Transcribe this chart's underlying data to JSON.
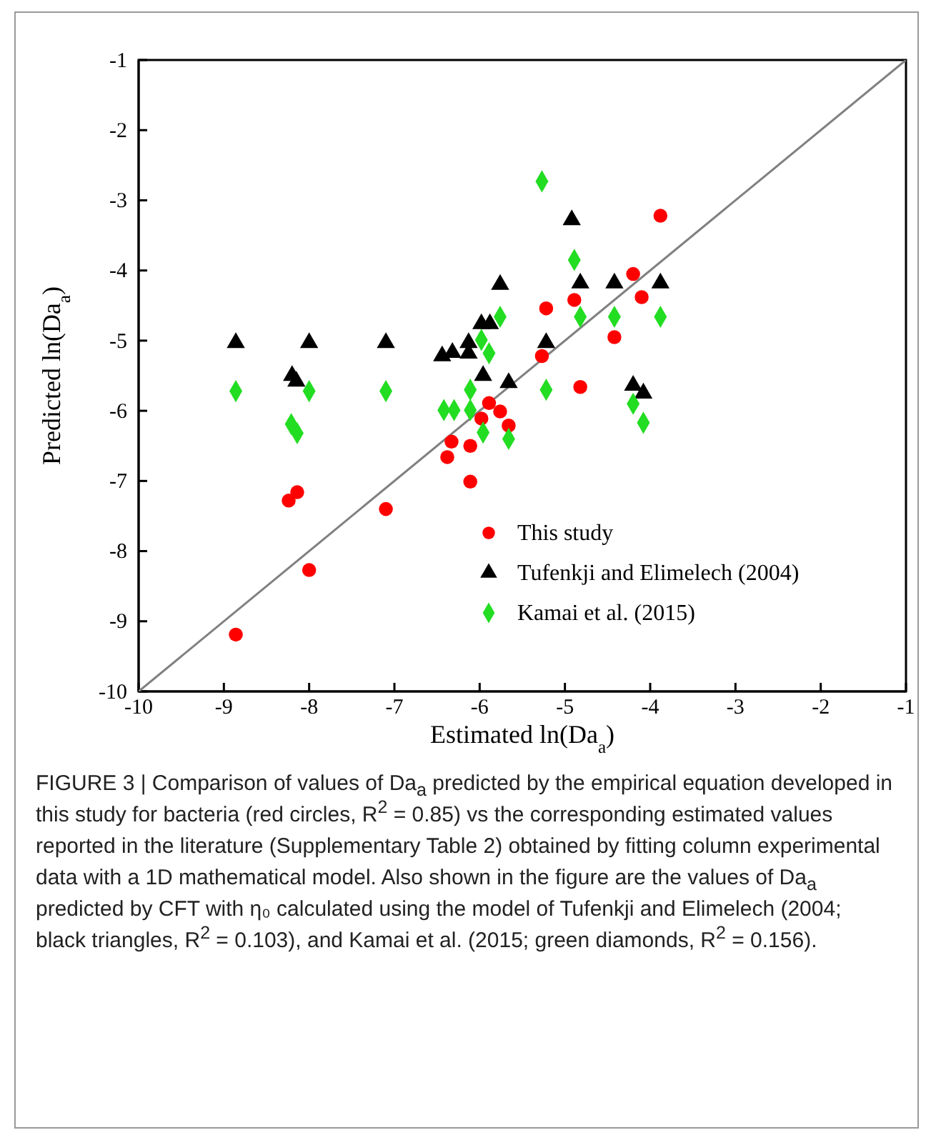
{
  "chart_data": {
    "type": "scatter",
    "xlabel": "Estimated ln(Da$_{a}$)",
    "ylabel": "Predicted ln(Da$_{a}$)",
    "xlim": [
      -10,
      -1
    ],
    "xticks": [
      -10,
      -9,
      -8,
      -7,
      -6,
      -5,
      -4,
      -3,
      -2,
      -1
    ],
    "ylim": [
      -10,
      -1
    ],
    "yticks": [
      -10,
      -9,
      -8,
      -7,
      -6,
      -5,
      -4,
      -3,
      -2,
      -1
    ],
    "grid": false,
    "legend": "bottom right",
    "series": [
      {
        "type": "line",
        "color": "#808080",
        "marker": "none",
        "line_style": "solid",
        "x": [
          -10,
          -1
        ],
        "values": [
          -10,
          -1
        ]
      },
      {
        "name": "This study",
        "color": "#ff0000",
        "marker": "circle",
        "x": [
          -8.86,
          -8.24,
          -8.14,
          -8.0,
          -7.1,
          -6.38,
          -6.33,
          -6.11,
          -6.11,
          -5.98,
          -5.89,
          -5.76,
          -5.66,
          -5.27,
          -5.22,
          -4.89,
          -4.82,
          -4.42,
          -4.2,
          -4.1,
          -3.88
        ],
        "values": [
          -9.19,
          -7.28,
          -7.16,
          -8.27,
          -7.4,
          -6.66,
          -6.44,
          -7.01,
          -6.5,
          -6.11,
          -5.89,
          -6.01,
          -6.21,
          -5.22,
          -4.54,
          -4.42,
          -5.66,
          -4.95,
          -4.05,
          -4.38,
          -3.22
        ]
      },
      {
        "name": "Tufenkji and Elimelech (2004)",
        "color": "#000000",
        "marker": "triangle",
        "x": [
          -8.86,
          -8.2,
          -8.15,
          -8.0,
          -7.1,
          -6.44,
          -6.32,
          -6.13,
          -6.13,
          -5.98,
          -5.88,
          -5.76,
          -5.96,
          -5.66,
          -5.22,
          -4.92,
          -4.82,
          -4.42,
          -3.88,
          -4.2,
          -4.08
        ],
        "values": [
          -5.03,
          -5.5,
          -5.58,
          -5.03,
          -5.03,
          -5.22,
          -5.17,
          -5.03,
          -5.18,
          -4.76,
          -4.76,
          -4.2,
          -5.5,
          -5.6,
          -5.03,
          -3.28,
          -4.18,
          -4.18,
          -4.18,
          -5.64,
          -5.75
        ]
      },
      {
        "name": "Kamai et al. (2015)",
        "color": "#22dd22",
        "marker": "diamond",
        "x": [
          -8.86,
          -8.0,
          -7.1,
          -8.21,
          -8.14,
          -6.42,
          -6.3,
          -6.11,
          -6.11,
          -5.96,
          -5.98,
          -5.89,
          -5.76,
          -5.66,
          -5.27,
          -4.89,
          -4.82,
          -4.42,
          -3.88,
          -5.22,
          -4.2,
          -4.08
        ],
        "values": [
          -5.72,
          -5.72,
          -5.72,
          -6.19,
          -6.32,
          -5.99,
          -5.99,
          -5.7,
          -5.99,
          -6.31,
          -4.99,
          -5.18,
          -4.66,
          -6.4,
          -2.73,
          -3.85,
          -4.66,
          -4.66,
          -4.66,
          -5.7,
          -5.9,
          -6.17
        ]
      }
    ],
    "annotations": [
      "FIGURE 3 | Comparison of values of Da$_{a}$ predicted by the empirical equation developed in this study for bacteria (red circles, R$^{2}$ = 0.85) vs the corresponding estimated values reported in the literature (Supplementary Table 2) obtained by fitting column experimental data with a 1D mathematical model. Also shown in the figure are the values of Da$_{a}$ predicted by CFT with η₀ calculated using the model of Tufenkji and Elimelech (2004; black triangles, R$^{2}$ = 0.103), and Kamai et al. (2015; green diamonds, R$^{2}$ = 0.156)."
    ]
  }
}
